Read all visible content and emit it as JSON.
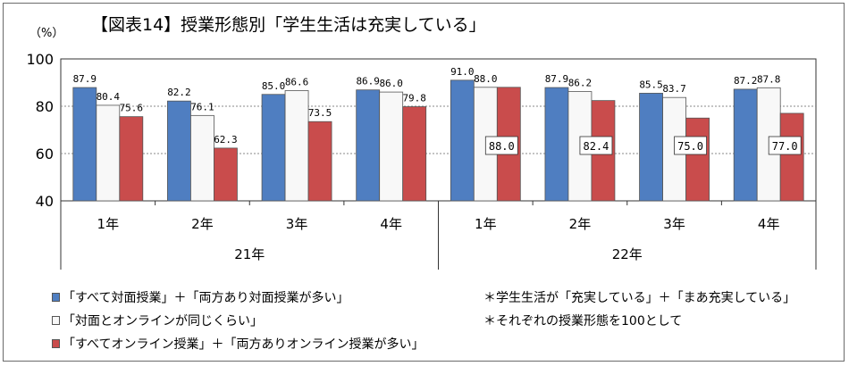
{
  "title": "【図表14】授業形態別「学生生活は充実している」",
  "unit_label": "（%）",
  "colors": {
    "series_face_to_face": "#4f7ec1",
    "series_mixed": "#f8f8f8",
    "series_online": "#c94c4c",
    "grid": "#8a8a8a",
    "axis": "#333333"
  },
  "chart_data": {
    "type": "bar",
    "title": "【図表14】授業形態別「学生生活は充実している」",
    "ylabel": "（%）",
    "ylim": [
      40,
      100
    ],
    "yticks": [
      40,
      60,
      80,
      100
    ],
    "grid": "horizontal dotted at 60 and 80",
    "categories": [
      "1年",
      "2年",
      "3年",
      "4年",
      "1年",
      "2年",
      "3年",
      "4年"
    ],
    "groups": [
      {
        "label": "21年",
        "categories": [
          "1年",
          "2年",
          "3年",
          "4年"
        ]
      },
      {
        "label": "22年",
        "categories": [
          "1年",
          "2年",
          "3年",
          "4年"
        ]
      }
    ],
    "series": [
      {
        "name": "「すべて対面授業」＋「両方あり対面授業が多い」",
        "values": [
          87.9,
          82.2,
          85.0,
          86.9,
          91.0,
          87.9,
          85.5,
          87.2
        ],
        "labels": [
          "87.9",
          "82.2",
          "85.0",
          "86.9",
          "91.0",
          "87.9",
          "85.5",
          "87.2"
        ]
      },
      {
        "name": "「対面とオンラインが同じくらい」",
        "values": [
          80.4,
          76.1,
          86.6,
          86.0,
          88.0,
          86.2,
          83.7,
          87.8
        ],
        "labels": [
          "80.4",
          "76.1",
          "86.6",
          "86.0",
          "88.0",
          "86.2",
          "83.7",
          "87.8"
        ]
      },
      {
        "name": "「すべてオンライン授業」＋「両方ありオンライン授業が多い」",
        "values": [
          75.6,
          62.3,
          73.5,
          79.8,
          88.0,
          82.4,
          75.0,
          77.0
        ],
        "labels": [
          "75.6",
          "62.3",
          "73.5",
          "79.8",
          "88.0",
          "82.4",
          "75.0",
          "77.0"
        ]
      }
    ],
    "legend_placement": "bottom-left"
  },
  "legend": [
    "「すべて対面授業」＋「両方あり対面授業が多い」",
    "「対面とオンラインが同じくらい」",
    "「すべてオンライン授業」＋「両方ありオンライン授業が多い」"
  ],
  "notes": [
    "＊学生生活が「充実している」＋「まあ充実している」",
    "＊それぞれの授業形態を100として"
  ]
}
